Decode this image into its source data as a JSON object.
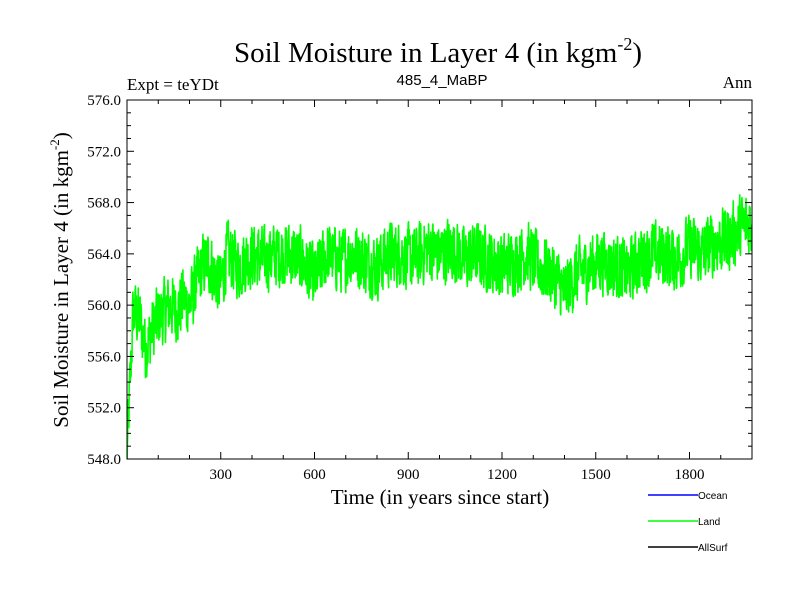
{
  "chart_data": {
    "type": "line",
    "title": "Soil Moisture in Layer 4 (in kgm",
    "title_sup": "-2",
    "title_close": ")",
    "subtitle_left": "Expt = teYDt",
    "subtitle_center": "485_4_MaBP",
    "subtitle_right": "Ann",
    "xlabel": "Time (in years since start)",
    "ylabel": "Soil Moisture in Layer 4 (in kgm",
    "ylabel_sup": "-2",
    "ylabel_close": ")",
    "xlim": [
      0,
      2000
    ],
    "ylim": [
      548.0,
      576.0
    ],
    "xticks": [
      300,
      600,
      900,
      1200,
      1500,
      1800
    ],
    "yticks": [
      "548.0",
      "552.0",
      "556.0",
      "560.0",
      "564.0",
      "568.0",
      "572.0",
      "576.0"
    ],
    "legend": {
      "placement": "bottom-right",
      "entries": [
        {
          "label": "Ocean",
          "color": "#0000ff"
        },
        {
          "label": "Land",
          "color": "#00ff00"
        },
        {
          "label": "AllSurf",
          "color": "#000000"
        }
      ]
    },
    "series": [
      {
        "name": "Land",
        "color": "#00ff00",
        "x": [
          0,
          20,
          40,
          60,
          80,
          100,
          120,
          140,
          160,
          180,
          200,
          220,
          240,
          260,
          280,
          300,
          320,
          340,
          360,
          380,
          400,
          440,
          480,
          520,
          560,
          600,
          640,
          680,
          720,
          760,
          800,
          840,
          880,
          920,
          960,
          1000,
          1040,
          1080,
          1120,
          1160,
          1200,
          1240,
          1280,
          1320,
          1360,
          1400,
          1440,
          1480,
          1520,
          1560,
          1600,
          1640,
          1680,
          1720,
          1760,
          1800,
          1840,
          1880,
          1920,
          1960,
          2000
        ],
        "values": [
          548.5,
          559.5,
          559.0,
          556.5,
          558.0,
          559.0,
          559.5,
          560.0,
          559.5,
          560.5,
          560.0,
          561.5,
          563.0,
          563.5,
          562.5,
          561.5,
          564.0,
          563.5,
          563.0,
          563.5,
          564.0,
          563.5,
          564.0,
          564.0,
          563.5,
          562.0,
          564.0,
          563.5,
          564.0,
          563.5,
          563.0,
          564.0,
          564.0,
          563.5,
          564.5,
          564.0,
          564.5,
          563.5,
          564.0,
          563.5,
          563.0,
          563.5,
          564.0,
          563.0,
          562.5,
          561.0,
          562.5,
          563.0,
          563.5,
          563.0,
          562.5,
          563.5,
          564.0,
          564.0,
          563.5,
          564.5,
          564.0,
          565.0,
          565.0,
          566.0,
          566.5
        ],
        "noise_amplitude": 2.4
      }
    ]
  }
}
